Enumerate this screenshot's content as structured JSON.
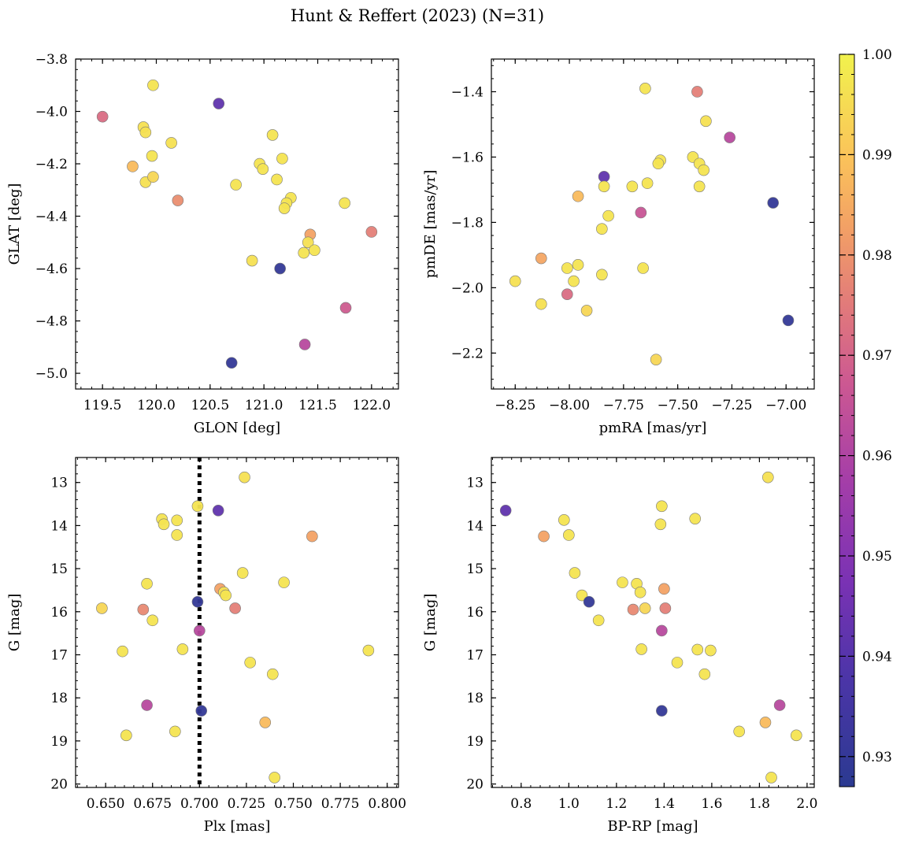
{
  "figure": {
    "title": "Hunt & Reffert (2023) (N=31)"
  },
  "colorbar": {
    "min": 0.927,
    "max": 1.0,
    "ticks": [
      0.93,
      0.94,
      0.95,
      0.96,
      0.97,
      0.98,
      0.99,
      1.0
    ],
    "tick_labels": [
      "0.93",
      "0.94",
      "0.95",
      "0.96",
      "0.97",
      "0.98",
      "0.99",
      "1.00"
    ]
  },
  "chart_data": [
    {
      "type": "scatter",
      "id": "glon-glat",
      "xlabel": "GLON [deg]",
      "ylabel": "GLAT [deg]",
      "xlim": [
        119.25,
        122.25
      ],
      "ylim": [
        -5.06,
        -3.8
      ],
      "y_inverted": false,
      "xticks": [
        119.5,
        120.0,
        120.5,
        121.0,
        121.5,
        122.0
      ],
      "xtick_labels": [
        "119.5",
        "120.0",
        "120.5",
        "121.0",
        "121.5",
        "122.0"
      ],
      "yticks": [
        -3.8,
        -4.0,
        -4.2,
        -4.4,
        -4.6,
        -4.8,
        -5.0
      ],
      "ytick_labels": [
        "−3.8",
        "−4.0",
        "−4.2",
        "−4.4",
        "−4.6",
        "−4.8",
        "−5.0"
      ],
      "points": [
        {
          "x": 119.5,
          "y": -4.02,
          "c": 0.972
        },
        {
          "x": 119.97,
          "y": -3.9,
          "c": 0.997
        },
        {
          "x": 119.88,
          "y": -4.06,
          "c": 0.996
        },
        {
          "x": 119.9,
          "y": -4.08,
          "c": 0.996
        },
        {
          "x": 119.78,
          "y": -4.21,
          "c": 0.988
        },
        {
          "x": 119.96,
          "y": -4.17,
          "c": 0.997
        },
        {
          "x": 120.14,
          "y": -4.12,
          "c": 0.996
        },
        {
          "x": 119.9,
          "y": -4.27,
          "c": 0.996
        },
        {
          "x": 119.97,
          "y": -4.25,
          "c": 0.994
        },
        {
          "x": 120.2,
          "y": -4.34,
          "c": 0.979
        },
        {
          "x": 120.58,
          "y": -3.97,
          "c": 0.942
        },
        {
          "x": 120.74,
          "y": -4.28,
          "c": 0.997
        },
        {
          "x": 120.96,
          "y": -4.2,
          "c": 0.997
        },
        {
          "x": 120.99,
          "y": -4.22,
          "c": 0.997
        },
        {
          "x": 121.08,
          "y": -4.09,
          "c": 0.997
        },
        {
          "x": 121.17,
          "y": -4.18,
          "c": 0.997
        },
        {
          "x": 121.12,
          "y": -4.26,
          "c": 0.997
        },
        {
          "x": 121.25,
          "y": -4.33,
          "c": 0.997
        },
        {
          "x": 121.21,
          "y": -4.35,
          "c": 0.997
        },
        {
          "x": 121.19,
          "y": -4.37,
          "c": 0.997
        },
        {
          "x": 121.75,
          "y": -4.35,
          "c": 0.997
        },
        {
          "x": 121.43,
          "y": -4.47,
          "c": 0.983
        },
        {
          "x": 121.41,
          "y": -4.5,
          "c": 0.996
        },
        {
          "x": 121.47,
          "y": -4.53,
          "c": 0.997
        },
        {
          "x": 121.37,
          "y": -4.54,
          "c": 0.997
        },
        {
          "x": 120.89,
          "y": -4.57,
          "c": 0.996
        },
        {
          "x": 121.15,
          "y": -4.6,
          "c": 0.93
        },
        {
          "x": 122.0,
          "y": -4.46,
          "c": 0.976
        },
        {
          "x": 121.76,
          "y": -4.75,
          "c": 0.968
        },
        {
          "x": 121.38,
          "y": -4.89,
          "c": 0.962
        },
        {
          "x": 120.7,
          "y": -4.96,
          "c": 0.93
        }
      ]
    },
    {
      "type": "scatter",
      "id": "pmra-pmde",
      "xlabel": "pmRA [mas/yr]",
      "ylabel": "pmDE [mas/yr]",
      "xlim": [
        -8.36,
        -6.87
      ],
      "ylim": [
        -2.31,
        -1.3
      ],
      "y_inverted": false,
      "xticks": [
        -8.25,
        -8.0,
        -7.75,
        -7.5,
        -7.25,
        -7.0
      ],
      "xtick_labels": [
        "−8.25",
        "−8.00",
        "−7.75",
        "−7.50",
        "−7.25",
        "−7.00"
      ],
      "yticks": [
        -1.4,
        -1.6,
        -1.8,
        -2.0,
        -2.2
      ],
      "ytick_labels": [
        "−1.4",
        "−1.6",
        "−1.8",
        "−2.0",
        "−2.2"
      ],
      "points": [
        {
          "x": -7.65,
          "y": -1.39,
          "c": 0.997
        },
        {
          "x": -7.41,
          "y": -1.4,
          "c": 0.976
        },
        {
          "x": -7.37,
          "y": -1.49,
          "c": 0.996
        },
        {
          "x": -7.26,
          "y": -1.54,
          "c": 0.962
        },
        {
          "x": -7.43,
          "y": -1.6,
          "c": 0.997
        },
        {
          "x": -7.4,
          "y": -1.62,
          "c": 0.997
        },
        {
          "x": -7.38,
          "y": -1.64,
          "c": 0.997
        },
        {
          "x": -7.58,
          "y": -1.61,
          "c": 0.997
        },
        {
          "x": -7.59,
          "y": -1.62,
          "c": 0.997
        },
        {
          "x": -7.84,
          "y": -1.66,
          "c": 0.942
        },
        {
          "x": -7.64,
          "y": -1.68,
          "c": 0.997
        },
        {
          "x": -7.71,
          "y": -1.69,
          "c": 0.997
        },
        {
          "x": -7.84,
          "y": -1.69,
          "c": 0.997
        },
        {
          "x": -7.4,
          "y": -1.69,
          "c": 0.997
        },
        {
          "x": -7.96,
          "y": -1.72,
          "c": 0.988
        },
        {
          "x": -7.06,
          "y": -1.74,
          "c": 0.93
        },
        {
          "x": -7.82,
          "y": -1.78,
          "c": 0.997
        },
        {
          "x": -7.67,
          "y": -1.77,
          "c": 0.966
        },
        {
          "x": -7.85,
          "y": -1.82,
          "c": 0.997
        },
        {
          "x": -8.13,
          "y": -1.91,
          "c": 0.984
        },
        {
          "x": -7.96,
          "y": -1.93,
          "c": 0.997
        },
        {
          "x": -8.01,
          "y": -1.94,
          "c": 0.997
        },
        {
          "x": -7.66,
          "y": -1.94,
          "c": 0.997
        },
        {
          "x": -7.85,
          "y": -1.96,
          "c": 0.997
        },
        {
          "x": -8.25,
          "y": -1.98,
          "c": 0.996
        },
        {
          "x": -7.98,
          "y": -1.98,
          "c": 0.997
        },
        {
          "x": -8.13,
          "y": -2.05,
          "c": 0.996
        },
        {
          "x": -8.01,
          "y": -2.02,
          "c": 0.972
        },
        {
          "x": -7.92,
          "y": -2.07,
          "c": 0.994
        },
        {
          "x": -6.99,
          "y": -2.1,
          "c": 0.93
        },
        {
          "x": -7.6,
          "y": -2.22,
          "c": 0.994
        }
      ]
    },
    {
      "type": "scatter",
      "id": "plx-g",
      "xlabel": "Plx [mas]",
      "ylabel": "G [mag]",
      "xlim": [
        0.634,
        0.806
      ],
      "ylim": [
        12.42,
        20.08
      ],
      "y_inverted": true,
      "reference_line": {
        "x": 0.7,
        "style": "dotted"
      },
      "xticks": [
        0.65,
        0.675,
        0.7,
        0.725,
        0.75,
        0.775,
        0.8
      ],
      "xtick_labels": [
        "0.650",
        "0.675",
        "0.700",
        "0.725",
        "0.750",
        "0.775",
        "0.800"
      ],
      "yticks": [
        13,
        14,
        15,
        16,
        17,
        18,
        19,
        20
      ],
      "ytick_labels": [
        "13",
        "14",
        "15",
        "16",
        "17",
        "18",
        "19",
        "20"
      ],
      "points": [
        {
          "x": 0.724,
          "y": 12.88,
          "c": 0.996
        },
        {
          "x": 0.699,
          "y": 13.55,
          "c": 0.997
        },
        {
          "x": 0.71,
          "y": 13.65,
          "c": 0.942
        },
        {
          "x": 0.68,
          "y": 13.85,
          "c": 0.997
        },
        {
          "x": 0.688,
          "y": 13.88,
          "c": 0.997
        },
        {
          "x": 0.681,
          "y": 13.97,
          "c": 0.997
        },
        {
          "x": 0.688,
          "y": 14.22,
          "c": 0.997
        },
        {
          "x": 0.76,
          "y": 14.25,
          "c": 0.983
        },
        {
          "x": 0.723,
          "y": 15.1,
          "c": 0.997
        },
        {
          "x": 0.672,
          "y": 15.35,
          "c": 0.997
        },
        {
          "x": 0.745,
          "y": 15.32,
          "c": 0.997
        },
        {
          "x": 0.711,
          "y": 15.47,
          "c": 0.983
        },
        {
          "x": 0.713,
          "y": 15.55,
          "c": 0.996
        },
        {
          "x": 0.714,
          "y": 15.62,
          "c": 0.997
        },
        {
          "x": 0.699,
          "y": 15.77,
          "c": 0.93
        },
        {
          "x": 0.648,
          "y": 15.92,
          "c": 0.994
        },
        {
          "x": 0.67,
          "y": 15.95,
          "c": 0.978
        },
        {
          "x": 0.719,
          "y": 15.92,
          "c": 0.976
        },
        {
          "x": 0.675,
          "y": 16.2,
          "c": 0.997
        },
        {
          "x": 0.7,
          "y": 16.44,
          "c": 0.962
        },
        {
          "x": 0.659,
          "y": 16.92,
          "c": 0.997
        },
        {
          "x": 0.691,
          "y": 16.87,
          "c": 0.997
        },
        {
          "x": 0.79,
          "y": 16.9,
          "c": 0.997
        },
        {
          "x": 0.727,
          "y": 17.18,
          "c": 0.997
        },
        {
          "x": 0.739,
          "y": 17.45,
          "c": 0.997
        },
        {
          "x": 0.672,
          "y": 18.17,
          "c": 0.962
        },
        {
          "x": 0.701,
          "y": 18.3,
          "c": 0.93
        },
        {
          "x": 0.735,
          "y": 18.57,
          "c": 0.988
        },
        {
          "x": 0.687,
          "y": 18.78,
          "c": 0.997
        },
        {
          "x": 0.661,
          "y": 18.87,
          "c": 0.997
        },
        {
          "x": 0.74,
          "y": 19.85,
          "c": 0.997
        }
      ]
    },
    {
      "type": "scatter",
      "id": "bprp-g",
      "xlabel": "BP-RP [mag]",
      "ylabel": "G [mag]",
      "xlim": [
        0.675,
        2.03
      ],
      "ylim": [
        12.42,
        20.08
      ],
      "y_inverted": true,
      "xticks": [
        0.8,
        1.0,
        1.2,
        1.4,
        1.6,
        1.8,
        2.0
      ],
      "xtick_labels": [
        "0.8",
        "1.0",
        "1.2",
        "1.4",
        "1.6",
        "1.8",
        "2.0"
      ],
      "yticks": [
        13,
        14,
        15,
        16,
        17,
        18,
        19,
        20
      ],
      "ytick_labels": [
        "13",
        "14",
        "15",
        "16",
        "17",
        "18",
        "19",
        "20"
      ],
      "points": [
        {
          "x": 1.836,
          "y": 12.88,
          "c": 0.996
        },
        {
          "x": 1.39,
          "y": 13.55,
          "c": 0.997
        },
        {
          "x": 0.735,
          "y": 13.65,
          "c": 0.942
        },
        {
          "x": 0.98,
          "y": 13.87,
          "c": 0.997
        },
        {
          "x": 1.53,
          "y": 13.84,
          "c": 0.997
        },
        {
          "x": 1.385,
          "y": 13.97,
          "c": 0.997
        },
        {
          "x": 1.0,
          "y": 14.22,
          "c": 0.997
        },
        {
          "x": 0.895,
          "y": 14.25,
          "c": 0.983
        },
        {
          "x": 1.025,
          "y": 15.1,
          "c": 0.997
        },
        {
          "x": 1.225,
          "y": 15.32,
          "c": 0.997
        },
        {
          "x": 1.285,
          "y": 15.35,
          "c": 0.997
        },
        {
          "x": 1.4,
          "y": 15.47,
          "c": 0.983
        },
        {
          "x": 1.3,
          "y": 15.55,
          "c": 0.997
        },
        {
          "x": 1.055,
          "y": 15.62,
          "c": 0.997
        },
        {
          "x": 1.085,
          "y": 15.77,
          "c": 0.93
        },
        {
          "x": 1.27,
          "y": 15.95,
          "c": 0.978
        },
        {
          "x": 1.32,
          "y": 15.92,
          "c": 0.994
        },
        {
          "x": 1.405,
          "y": 15.92,
          "c": 0.976
        },
        {
          "x": 1.125,
          "y": 16.2,
          "c": 0.997
        },
        {
          "x": 1.39,
          "y": 16.44,
          "c": 0.962
        },
        {
          "x": 1.305,
          "y": 16.87,
          "c": 0.997
        },
        {
          "x": 1.54,
          "y": 16.88,
          "c": 0.997
        },
        {
          "x": 1.595,
          "y": 16.9,
          "c": 0.997
        },
        {
          "x": 1.455,
          "y": 17.18,
          "c": 0.997
        },
        {
          "x": 1.57,
          "y": 17.45,
          "c": 0.997
        },
        {
          "x": 1.885,
          "y": 18.17,
          "c": 0.962
        },
        {
          "x": 1.39,
          "y": 18.3,
          "c": 0.93
        },
        {
          "x": 1.825,
          "y": 18.57,
          "c": 0.988
        },
        {
          "x": 1.715,
          "y": 18.78,
          "c": 0.997
        },
        {
          "x": 1.955,
          "y": 18.87,
          "c": 0.997
        },
        {
          "x": 1.85,
          "y": 19.85,
          "c": 0.997
        }
      ]
    }
  ]
}
